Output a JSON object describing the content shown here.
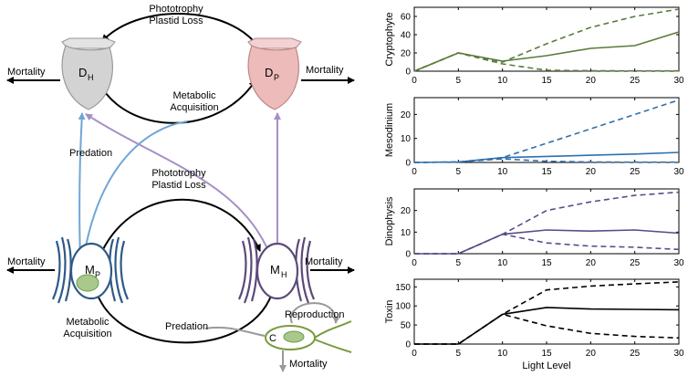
{
  "diagram": {
    "top_arrow_label_1": "Phototrophy",
    "top_arrow_label_2": "Plastid Loss",
    "upper_acq_label_1": "Metabolic",
    "upper_acq_label_2": "Acquisition",
    "mid_arrow_label_1": "Phototrophy",
    "mid_arrow_label_2": "Plastid Loss",
    "predation_label": "Predation",
    "lower_acq_label_1": "Metabolic",
    "lower_acq_label_2": "Acquisition",
    "lower_predation_label": "Predation",
    "reproduction_label": "Reproduction",
    "mortality_label": "Mortality",
    "dh_main": "D",
    "dh_sub": "H",
    "dp_main": "D",
    "dp_sub": "P",
    "mp_main": "M",
    "mp_sub": "P",
    "mh_main": "M",
    "mh_sub": "H",
    "c_label": "C"
  },
  "colors": {
    "dh_fill": "#d3d3d3",
    "dp_fill": "#eebbbb",
    "mp_stroke": "#2e5a87",
    "mh_stroke": "#5b4a7a",
    "chloroplast": "#a8c98a",
    "blue_arrow": "#6fa6d6",
    "purple_arrow": "#a78fc7",
    "grey_arrow": "#999999"
  },
  "chart_data": [
    {
      "type": "line",
      "ylabel": "Cryptophyte",
      "xlabel": "",
      "color": "#5a7a3a",
      "xlim": [
        0,
        30
      ],
      "ylim": [
        0,
        70
      ],
      "yticks": [
        0,
        20,
        40,
        60
      ],
      "xticks": [
        0,
        5,
        10,
        15,
        20,
        25,
        30
      ],
      "x": [
        0,
        5,
        10,
        15,
        20,
        25,
        30
      ],
      "series": [
        {
          "style": "solid",
          "values": [
            0,
            20,
            11,
            17,
            25,
            28,
            43
          ]
        },
        {
          "style": "dashed",
          "values": [
            0,
            20,
            10,
            30,
            48,
            60,
            68
          ]
        },
        {
          "style": "dashed",
          "values": [
            0,
            20,
            8,
            1,
            0.5,
            0.3,
            0.3
          ]
        }
      ]
    },
    {
      "type": "line",
      "ylabel": "Mesodinium",
      "xlabel": "",
      "color": "#2f6fae",
      "xlim": [
        0,
        30
      ],
      "ylim": [
        0,
        27
      ],
      "yticks": [
        0,
        10,
        20
      ],
      "xticks": [
        0,
        5,
        10,
        15,
        20,
        25,
        30
      ],
      "x": [
        0,
        5,
        10,
        15,
        20,
        25,
        30
      ],
      "series": [
        {
          "style": "solid",
          "values": [
            0,
            0.2,
            2,
            2.5,
            3,
            3.5,
            4.2
          ]
        },
        {
          "style": "dashed",
          "values": [
            0,
            0.2,
            2,
            8,
            14,
            20,
            26
          ]
        },
        {
          "style": "dashed",
          "values": [
            0,
            0.2,
            1.5,
            0.5,
            0.2,
            0.1,
            0.1
          ]
        }
      ]
    },
    {
      "type": "line",
      "ylabel": "Dinophysis",
      "xlabel": "",
      "color": "#5b4a8a",
      "xlim": [
        0,
        30
      ],
      "ylim": [
        0,
        30
      ],
      "yticks": [
        0,
        10,
        20
      ],
      "xticks": [
        0,
        5,
        10,
        15,
        20,
        25,
        30
      ],
      "x": [
        0,
        5,
        10,
        15,
        20,
        25,
        30
      ],
      "series": [
        {
          "style": "solid",
          "values": [
            0,
            0,
            9,
            11,
            10.5,
            11,
            9.5
          ]
        },
        {
          "style": "dashed",
          "values": [
            0,
            0,
            9,
            20,
            24,
            27,
            28.5
          ]
        },
        {
          "style": "dashed",
          "values": [
            0,
            0,
            9,
            5,
            3.5,
            3,
            2
          ]
        }
      ]
    },
    {
      "type": "line",
      "ylabel": "Toxin",
      "xlabel": "Light Level",
      "color": "#000000",
      "xlim": [
        0,
        30
      ],
      "ylim": [
        0,
        170
      ],
      "yticks": [
        0,
        50,
        100,
        150
      ],
      "xticks": [
        0,
        5,
        10,
        15,
        20,
        25,
        30
      ],
      "x": [
        0,
        5,
        10,
        15,
        20,
        25,
        30
      ],
      "series": [
        {
          "style": "solid",
          "values": [
            0,
            0,
            78,
            96,
            92,
            91,
            90
          ]
        },
        {
          "style": "dashed",
          "values": [
            0,
            0,
            78,
            142,
            152,
            158,
            163
          ]
        },
        {
          "style": "dashed",
          "values": [
            0,
            0,
            78,
            48,
            28,
            20,
            16
          ]
        }
      ]
    }
  ]
}
